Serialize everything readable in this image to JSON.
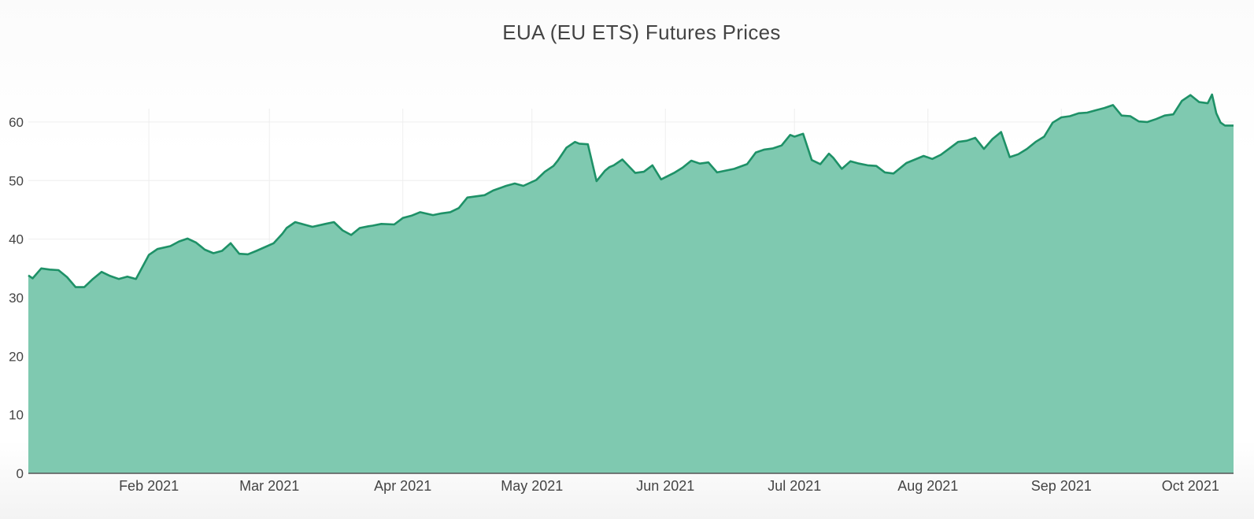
{
  "chart_data": {
    "type": "area",
    "title": "EUA (EU ETS) Futures Prices",
    "xlabel": "",
    "ylabel": "",
    "ylim": [
      0,
      69
    ],
    "yticks": [
      0,
      10,
      20,
      30,
      40,
      50,
      60
    ],
    "xtick_labels": [
      "Feb 2021",
      "Mar 2021",
      "Apr 2021",
      "May 2021",
      "Jun 2021",
      "Jul 2021",
      "Aug 2021",
      "Sep 2021",
      "Oct 2021"
    ],
    "xtick_dates": [
      "2021-02-01",
      "2021-03-01",
      "2021-04-01",
      "2021-05-01",
      "2021-06-01",
      "2021-07-01",
      "2021-08-01",
      "2021-09-01",
      "2021-10-01"
    ],
    "xlim": [
      "2021-01-04",
      "2021-10-11"
    ],
    "grid": true,
    "colors": {
      "line": "#1e9167",
      "fill": "#7fc9b0",
      "grid": "#eeeeee",
      "axis": "#555555",
      "tick_text": "#444444"
    },
    "x": [
      "2021-01-04",
      "2021-01-05",
      "2021-01-07",
      "2021-01-09",
      "2021-01-11",
      "2021-01-13",
      "2021-01-15",
      "2021-01-17",
      "2021-01-19",
      "2021-01-21",
      "2021-01-23",
      "2021-01-25",
      "2021-01-27",
      "2021-01-29",
      "2021-02-01",
      "2021-02-03",
      "2021-02-06",
      "2021-02-08",
      "2021-02-10",
      "2021-02-12",
      "2021-02-14",
      "2021-02-16",
      "2021-02-18",
      "2021-02-20",
      "2021-02-22",
      "2021-02-24",
      "2021-02-26",
      "2021-03-02",
      "2021-03-04",
      "2021-03-05",
      "2021-03-07",
      "2021-03-09",
      "2021-03-11",
      "2021-03-14",
      "2021-03-16",
      "2021-03-18",
      "2021-03-20",
      "2021-03-22",
      "2021-03-24",
      "2021-03-25",
      "2021-03-27",
      "2021-03-30",
      "2021-04-01",
      "2021-04-03",
      "2021-04-05",
      "2021-04-08",
      "2021-04-10",
      "2021-04-12",
      "2021-04-14",
      "2021-04-16",
      "2021-04-18",
      "2021-04-20",
      "2021-04-22",
      "2021-04-25",
      "2021-04-27",
      "2021-04-29",
      "2021-05-02",
      "2021-05-04",
      "2021-05-06",
      "2021-05-07",
      "2021-05-09",
      "2021-05-11",
      "2021-05-12",
      "2021-05-14",
      "2021-05-16",
      "2021-05-18",
      "2021-05-19",
      "2021-05-20",
      "2021-05-22",
      "2021-05-25",
      "2021-05-27",
      "2021-05-29",
      "2021-05-31",
      "2021-06-03",
      "2021-06-05",
      "2021-06-07",
      "2021-06-09",
      "2021-06-11",
      "2021-06-13",
      "2021-06-15",
      "2021-06-17",
      "2021-06-20",
      "2021-06-22",
      "2021-06-24",
      "2021-06-26",
      "2021-06-28",
      "2021-06-30",
      "2021-07-01",
      "2021-07-03",
      "2021-07-05",
      "2021-07-07",
      "2021-07-09",
      "2021-07-10",
      "2021-07-12",
      "2021-07-14",
      "2021-07-16",
      "2021-07-18",
      "2021-07-20",
      "2021-07-22",
      "2021-07-24",
      "2021-07-25",
      "2021-07-27",
      "2021-07-29",
      "2021-07-31",
      "2021-08-02",
      "2021-08-04",
      "2021-08-06",
      "2021-08-08",
      "2021-08-10",
      "2021-08-12",
      "2021-08-14",
      "2021-08-16",
      "2021-08-18",
      "2021-08-20",
      "2021-08-22",
      "2021-08-24",
      "2021-08-26",
      "2021-08-28",
      "2021-08-30",
      "2021-09-01",
      "2021-09-03",
      "2021-09-05",
      "2021-09-07",
      "2021-09-09",
      "2021-09-11",
      "2021-09-13",
      "2021-09-15",
      "2021-09-17",
      "2021-09-19",
      "2021-09-21",
      "2021-09-23",
      "2021-09-25",
      "2021-09-27",
      "2021-09-29",
      "2021-10-01",
      "2021-10-03",
      "2021-10-05",
      "2021-10-06",
      "2021-10-07",
      "2021-10-08",
      "2021-10-09",
      "2021-10-11"
    ],
    "series": [
      {
        "values": [
          33.8,
          33.3,
          35.0,
          34.8,
          34.7,
          33.5,
          31.8,
          31.8,
          33.2,
          34.4,
          33.7,
          33.2,
          33.6,
          33.2,
          37.3,
          38.3,
          38.8,
          39.6,
          40.1,
          39.4,
          38.2,
          37.6,
          38.0,
          39.3,
          37.5,
          37.4,
          38.0,
          39.3,
          40.9,
          41.9,
          42.9,
          42.5,
          42.1,
          42.6,
          42.9,
          41.5,
          40.7,
          41.9,
          42.2,
          42.3,
          42.6,
          42.5,
          43.6,
          44.0,
          44.6,
          44.1,
          44.4,
          44.6,
          45.3,
          47.1,
          47.3,
          47.5,
          48.3,
          49.1,
          49.5,
          49.1,
          50.1,
          51.5,
          52.5,
          53.4,
          55.6,
          56.6,
          56.3,
          56.2,
          49.9,
          51.7,
          52.3,
          52.6,
          53.6,
          51.3,
          51.5,
          52.6,
          50.2,
          51.3,
          52.2,
          53.4,
          52.9,
          53.1,
          51.4,
          51.7,
          52.0,
          52.8,
          54.8,
          55.3,
          55.5,
          56.0,
          57.8,
          57.5,
          58.0,
          53.5,
          52.8,
          54.6,
          53.9,
          52.0,
          53.3,
          52.9,
          52.6,
          52.5,
          51.4,
          51.2,
          51.8,
          53.0,
          53.6,
          54.2,
          53.7,
          54.4,
          55.5,
          56.6,
          56.8,
          57.3,
          55.4,
          57.1,
          58.3,
          54.0,
          54.5,
          55.4,
          56.6,
          57.5,
          59.9,
          60.8,
          61.0,
          61.5,
          61.6,
          62.0,
          62.4,
          62.9,
          61.1,
          61.0,
          60.1,
          60.0,
          60.5,
          61.1,
          61.3,
          63.6,
          64.6,
          63.4,
          63.2,
          64.7,
          61.5,
          59.9,
          59.4,
          59.4
        ]
      }
    ]
  }
}
